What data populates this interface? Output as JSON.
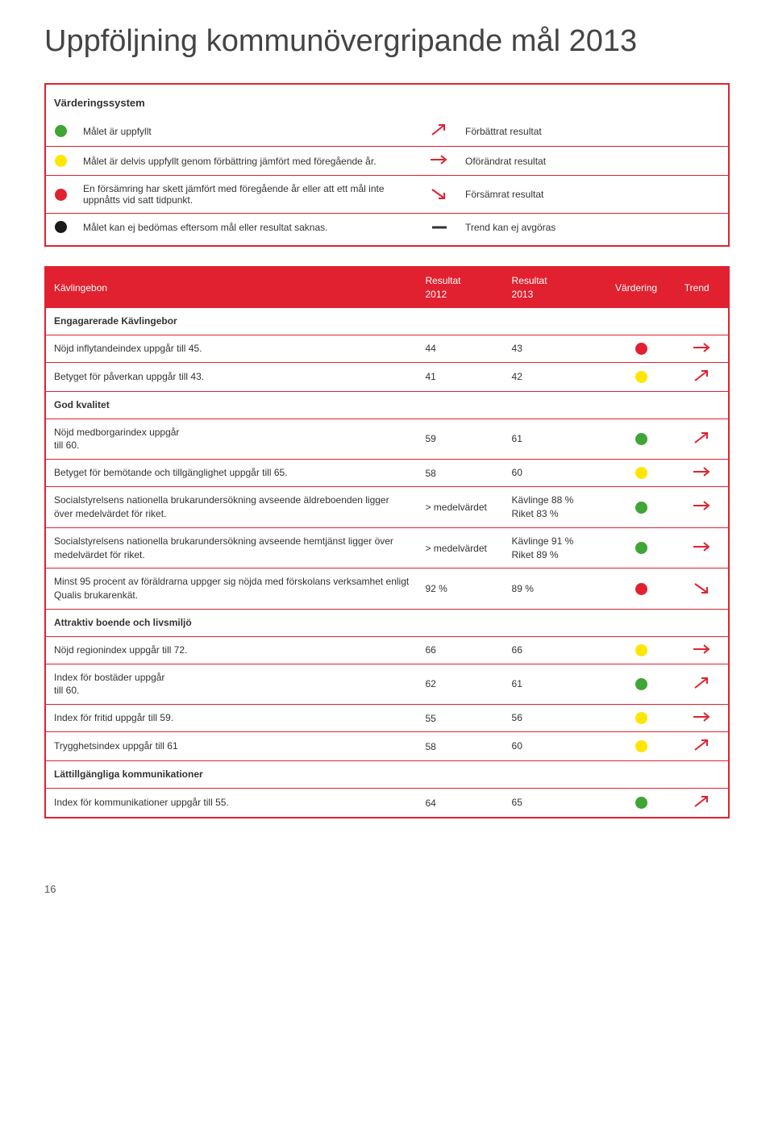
{
  "page": {
    "title": "Uppföljning kommunövergripande mål 2013",
    "footer": "16"
  },
  "colors": {
    "red": "#e1212f",
    "green": "#3fa535",
    "yellow": "#ffe600",
    "reddot": "#e1212f",
    "black": "#1a1a1a",
    "arrow": "#e1212f"
  },
  "legend": {
    "header": "Värderingssystem",
    "rows": [
      {
        "dot": "green",
        "desc": "Målet är uppfyllt",
        "arrow": "up",
        "rdesc": "Förbättrat resultat"
      },
      {
        "dot": "yellow",
        "desc": "Målet är delvis uppfyllt genom förbättring jämfört med föregående år.",
        "arrow": "flat",
        "rdesc": "Oförändrat resultat"
      },
      {
        "dot": "reddot",
        "desc": "En försämring har skett jämfört med föregående år eller att ett mål inte uppnåtts vid satt tidpunkt.",
        "arrow": "down",
        "rdesc": "Försämrat resultat"
      },
      {
        "dot": "black",
        "desc": "Målet kan ej bedömas eftersom mål eller resultat saknas.",
        "arrow": "dash",
        "rdesc": "Trend kan ej avgöras"
      }
    ]
  },
  "table": {
    "headers": {
      "k": "Kävlingebon",
      "r1": "Resultat\n2012",
      "r2": "Resultat\n2013",
      "v": "Värdering",
      "t": "Trend"
    },
    "rows": [
      {
        "type": "section",
        "label": "Engagarerade Kävlingebor"
      },
      {
        "type": "data",
        "label": "Nöjd inflytandeindex uppgår till 45.",
        "r1": "44",
        "r2": "43",
        "dot": "reddot",
        "arrow": "flat"
      },
      {
        "type": "data",
        "label": "Betyget för påverkan uppgår till 43.",
        "r1": "41",
        "r2": "42",
        "dot": "yellow",
        "arrow": "up"
      },
      {
        "type": "section",
        "label": "God kvalitet"
      },
      {
        "type": "data",
        "label": "Nöjd medborgarindex uppgår\ntill 60.",
        "r1": "59",
        "r2": "61",
        "dot": "green",
        "arrow": "up"
      },
      {
        "type": "data",
        "label": "Betyget för bemötande och tillgänglighet uppgår till 65.",
        "r1": "58",
        "r2": "60",
        "dot": "yellow",
        "arrow": "flat"
      },
      {
        "type": "data",
        "label": "Socialstyrelsens nationella brukarundersökning avseende äldreboenden ligger över medelvärdet för riket.",
        "r1": "> medelvärdet",
        "r2": "Kävlinge  88 %\nRiket        83 %",
        "dot": "green",
        "arrow": "flat"
      },
      {
        "type": "data",
        "label": "Socialstyrelsens nationella brukarundersökning avseende hemtjänst ligger över medelvärdet för riket.",
        "r1": "> medelvärdet",
        "r2": "Kävlinge  91 %\nRiket        89 %",
        "dot": "green",
        "arrow": "flat"
      },
      {
        "type": "data",
        "label": "Minst 95 procent av föräldrarna uppger sig nöjda med förskolans verksamhet enligt Qualis brukarenkät.",
        "r1": "92 %",
        "r2": "89 %",
        "dot": "reddot",
        "arrow": "down"
      },
      {
        "type": "section",
        "label": "Attraktiv boende och livsmiljö"
      },
      {
        "type": "data",
        "label": "Nöjd regionindex uppgår till 72.",
        "r1": "66",
        "r2": "66",
        "dot": "yellow",
        "arrow": "flat"
      },
      {
        "type": "data",
        "label": "Index för bostäder uppgår\ntill 60.",
        "r1": "62",
        "r2": "61",
        "dot": "green",
        "arrow": "up"
      },
      {
        "type": "data",
        "label": "Index för fritid uppgår till 59.",
        "r1": "55",
        "r2": "56",
        "dot": "yellow",
        "arrow": "flat"
      },
      {
        "type": "data",
        "label": "Trygghetsindex uppgår till 61",
        "r1": "58",
        "r2": "60",
        "dot": "yellow",
        "arrow": "up"
      },
      {
        "type": "section",
        "label": "Lättillgängliga kommunikationer"
      },
      {
        "type": "data",
        "label": "Index för kommunikationer uppgår till 55.",
        "r1": "64",
        "r2": "65",
        "dot": "green",
        "arrow": "up"
      }
    ]
  }
}
